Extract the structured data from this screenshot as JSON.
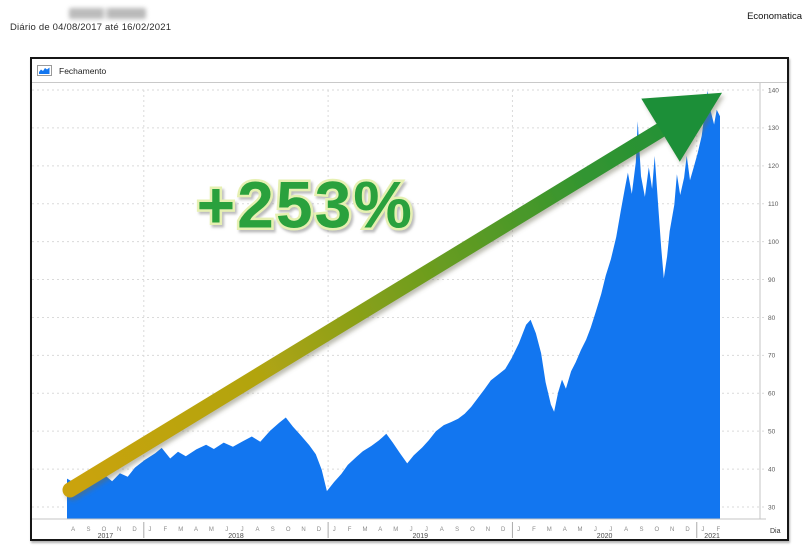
{
  "header": {
    "subtitle": "Diário de 04/08/2017 até 16/02/2021",
    "brand": "Economatica"
  },
  "legend": {
    "series_label": "Fechamento"
  },
  "chart_data": {
    "type": "area",
    "title": "",
    "xlabel": "Dia",
    "ylabel": "",
    "legend": [
      "Fechamento"
    ],
    "legend_position": "top-left",
    "grid": true,
    "ylim": [
      27,
      142
    ],
    "yticks": [
      30,
      40,
      50,
      60,
      70,
      80,
      90,
      100,
      110,
      120,
      130,
      140
    ],
    "x_years": [
      {
        "label": "2017",
        "months": [
          "A",
          "S",
          "O",
          "N",
          "D"
        ]
      },
      {
        "label": "2018",
        "months": [
          "J",
          "F",
          "M",
          "A",
          "M",
          "J",
          "J",
          "A",
          "S",
          "O",
          "N",
          "D"
        ]
      },
      {
        "label": "2019",
        "months": [
          "J",
          "F",
          "M",
          "A",
          "M",
          "J",
          "J",
          "A",
          "S",
          "O",
          "N",
          "D"
        ]
      },
      {
        "label": "2020",
        "months": [
          "J",
          "F",
          "M",
          "A",
          "M",
          "J",
          "J",
          "A",
          "S",
          "O",
          "N",
          "D"
        ]
      },
      {
        "label": "2021",
        "months": [
          "J",
          "F"
        ]
      }
    ],
    "colors": {
      "series_fill": "#1276F0",
      "gridline": "#dadada",
      "arrow_stops": [
        "#CBA30A",
        "#B1A411",
        "#6F9D1E",
        "#339530",
        "#1F8F38"
      ],
      "arrow_head": "#1F8F38",
      "annotation_fill": "#29A13E",
      "annotation_outline": "#E6F0B2"
    },
    "annotations": {
      "gain_label": "+253%",
      "gain_label_pos": {
        "t": 0.365,
        "v": 110
      },
      "arrow": {
        "from": {
          "t": 0.0,
          "v": 34.5
        },
        "to": {
          "t": 1.0,
          "v": 134.0
        }
      }
    },
    "series": [
      {
        "name": "Fechamento",
        "points": [
          [
            0.0,
            37.5
          ],
          [
            0.012,
            36.3
          ],
          [
            0.028,
            35.5
          ],
          [
            0.043,
            37.6
          ],
          [
            0.058,
            38.4
          ],
          [
            0.069,
            36.8
          ],
          [
            0.081,
            38.9
          ],
          [
            0.093,
            38.0
          ],
          [
            0.104,
            40.4
          ],
          [
            0.119,
            42.4
          ],
          [
            0.135,
            44.2
          ],
          [
            0.145,
            45.6
          ],
          [
            0.158,
            42.8
          ],
          [
            0.17,
            44.6
          ],
          [
            0.182,
            43.4
          ],
          [
            0.198,
            45.2
          ],
          [
            0.213,
            46.4
          ],
          [
            0.225,
            45.3
          ],
          [
            0.24,
            47.0
          ],
          [
            0.254,
            45.9
          ],
          [
            0.27,
            47.4
          ],
          [
            0.283,
            48.6
          ],
          [
            0.296,
            47.2
          ],
          [
            0.311,
            50.1
          ],
          [
            0.325,
            52.2
          ],
          [
            0.335,
            53.6
          ],
          [
            0.346,
            51.2
          ],
          [
            0.358,
            48.9
          ],
          [
            0.371,
            46.3
          ],
          [
            0.381,
            43.9
          ],
          [
            0.39,
            39.8
          ],
          [
            0.398,
            34.2
          ],
          [
            0.409,
            36.6
          ],
          [
            0.42,
            38.7
          ],
          [
            0.43,
            41.1
          ],
          [
            0.443,
            43.2
          ],
          [
            0.453,
            44.7
          ],
          [
            0.466,
            46.1
          ],
          [
            0.478,
            47.6
          ],
          [
            0.489,
            49.3
          ],
          [
            0.499,
            47.0
          ],
          [
            0.51,
            44.2
          ],
          [
            0.521,
            41.5
          ],
          [
            0.531,
            43.6
          ],
          [
            0.544,
            45.7
          ],
          [
            0.554,
            47.6
          ],
          [
            0.565,
            50.0
          ],
          [
            0.577,
            51.6
          ],
          [
            0.588,
            52.4
          ],
          [
            0.599,
            53.3
          ],
          [
            0.609,
            54.6
          ],
          [
            0.619,
            56.4
          ],
          [
            0.629,
            58.7
          ],
          [
            0.639,
            61.0
          ],
          [
            0.649,
            63.4
          ],
          [
            0.66,
            64.9
          ],
          [
            0.671,
            66.4
          ],
          [
            0.681,
            69.3
          ],
          [
            0.692,
            73.2
          ],
          [
            0.703,
            78.1
          ],
          [
            0.71,
            79.4
          ],
          [
            0.718,
            75.8
          ],
          [
            0.726,
            70.6
          ],
          [
            0.733,
            62.9
          ],
          [
            0.741,
            57.0
          ],
          [
            0.746,
            55.1
          ],
          [
            0.752,
            60.2
          ],
          [
            0.758,
            63.6
          ],
          [
            0.764,
            61.2
          ],
          [
            0.772,
            65.8
          ],
          [
            0.779,
            68.2
          ],
          [
            0.787,
            71.4
          ],
          [
            0.795,
            74.1
          ],
          [
            0.802,
            77.3
          ],
          [
            0.81,
            81.6
          ],
          [
            0.818,
            86.2
          ],
          [
            0.825,
            91.0
          ],
          [
            0.833,
            95.4
          ],
          [
            0.841,
            101.2
          ],
          [
            0.848,
            108.0
          ],
          [
            0.854,
            113.8
          ],
          [
            0.859,
            118.2
          ],
          [
            0.865,
            112.6
          ],
          [
            0.871,
            120.9
          ],
          [
            0.874,
            131.8
          ],
          [
            0.879,
            117.3
          ],
          [
            0.885,
            111.8
          ],
          [
            0.891,
            119.6
          ],
          [
            0.896,
            113.9
          ],
          [
            0.9,
            122.6
          ],
          [
            0.905,
            110.2
          ],
          [
            0.91,
            98.4
          ],
          [
            0.914,
            90.3
          ],
          [
            0.919,
            96.1
          ],
          [
            0.923,
            102.8
          ],
          [
            0.93,
            109.7
          ],
          [
            0.934,
            117.8
          ],
          [
            0.939,
            112.3
          ],
          [
            0.945,
            116.9
          ],
          [
            0.949,
            122.7
          ],
          [
            0.954,
            116.2
          ],
          [
            0.96,
            119.8
          ],
          [
            0.966,
            123.5
          ],
          [
            0.972,
            127.9
          ],
          [
            0.978,
            135.6
          ],
          [
            0.981,
            139.8
          ],
          [
            0.986,
            134.2
          ],
          [
            0.991,
            130.9
          ],
          [
            0.995,
            134.8
          ],
          [
            1.0,
            133.1
          ]
        ]
      }
    ]
  }
}
